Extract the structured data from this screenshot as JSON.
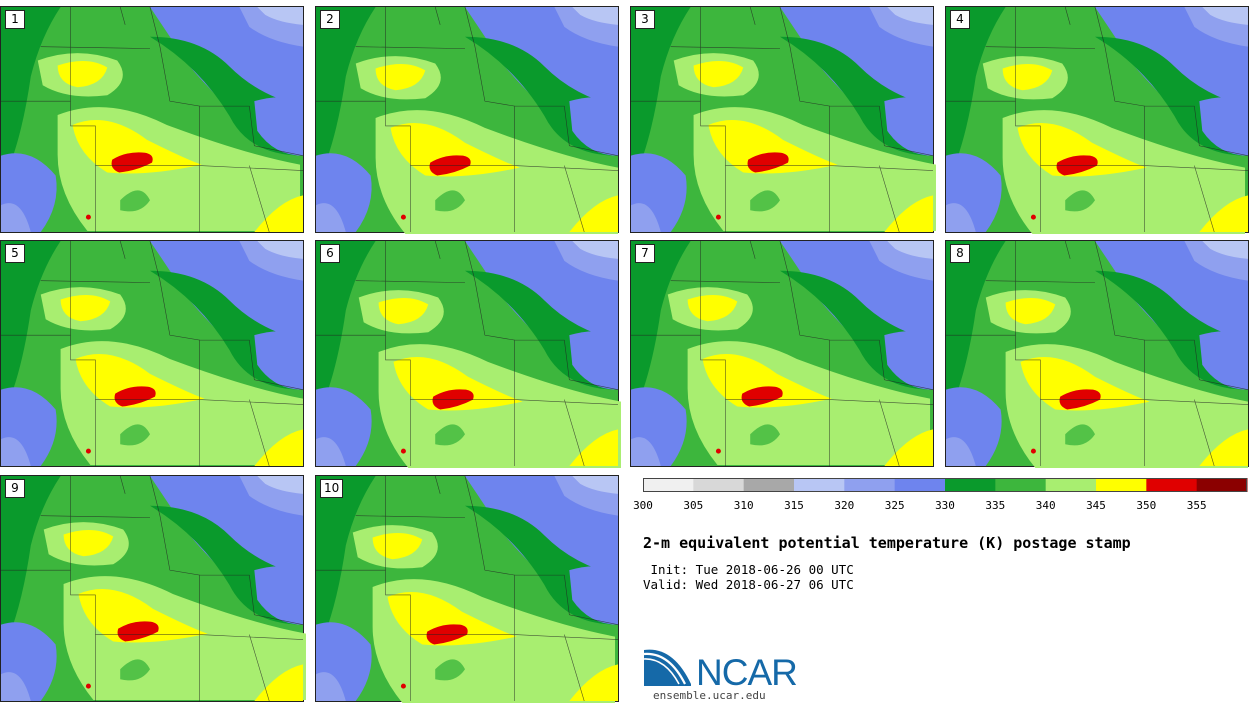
{
  "panels": [
    {
      "label": "1"
    },
    {
      "label": "2"
    },
    {
      "label": "3"
    },
    {
      "label": "4"
    },
    {
      "label": "5"
    },
    {
      "label": "6"
    },
    {
      "label": "7"
    },
    {
      "label": "8"
    },
    {
      "label": "9"
    },
    {
      "label": "10"
    }
  ],
  "colorbar": {
    "levels": [
      300,
      305,
      310,
      315,
      320,
      325,
      330,
      335,
      340,
      345,
      350,
      355,
      360
    ],
    "tick_labels": [
      "300",
      "305",
      "310",
      "315",
      "320",
      "325",
      "330",
      "335",
      "340",
      "345",
      "350",
      "355"
    ],
    "colors": [
      "#f0f0f0",
      "#d8d8d8",
      "#a8a8a8",
      "#b8c6f4",
      "#8fa0ef",
      "#6e84ee",
      "#0a9a2c",
      "#3db63d",
      "#a8ee70",
      "#ffff00",
      "#e00000",
      "#8b0000"
    ]
  },
  "title": "2-m equivalent potential temperature (K) postage stamp",
  "init_text": " Init: Tue 2018-06-26 00 UTC",
  "valid_text": "Valid: Wed 2018-06-27 06 UTC",
  "logo": {
    "text": "NCAR",
    "url": "ensemble.ucar.edu",
    "color": "#1569a8"
  }
}
